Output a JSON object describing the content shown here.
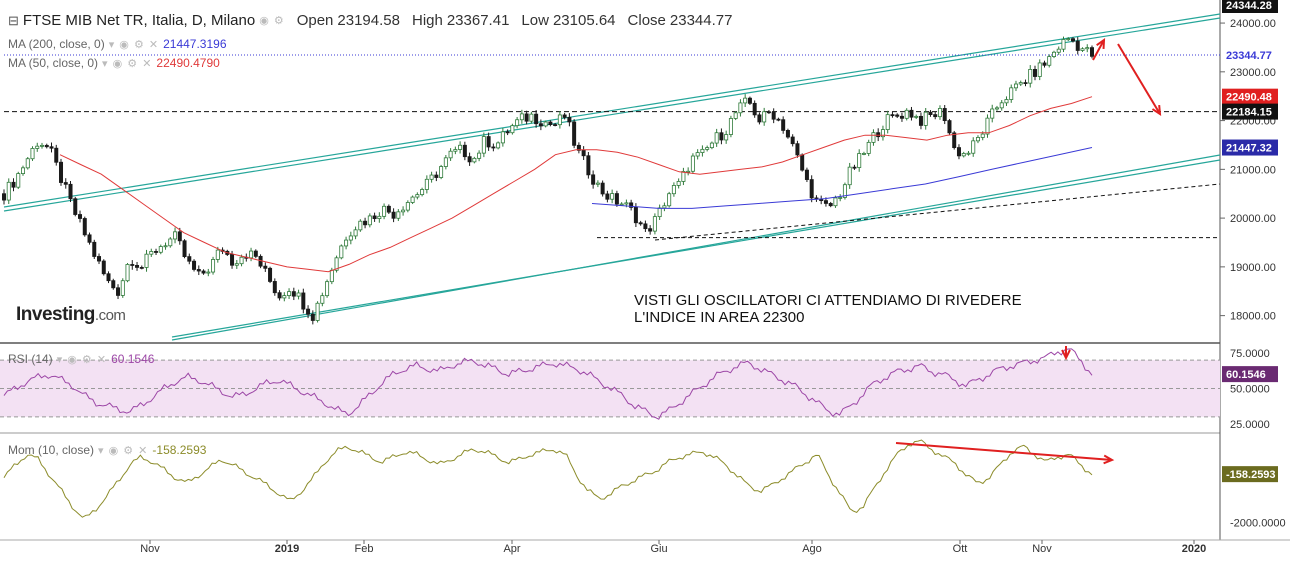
{
  "header": {
    "symbol_title": "FTSE MIB Net TR, Italia, D, Milano",
    "open_label": "Open",
    "open_value": "23194.58",
    "high_label": "High",
    "high_value": "23367.41",
    "low_label": "Low",
    "low_value": "23105.64",
    "close_label": "Close",
    "close_value": "23344.77"
  },
  "indicators": {
    "ma200": {
      "label": "MA (200, close, 0)",
      "value": "21447.3196",
      "color": "#3a3ad6"
    },
    "ma50": {
      "label": "MA (50, close, 0)",
      "value": "22490.4790",
      "color": "#e03a3a"
    },
    "rsi": {
      "label": "RSI (14)",
      "value": "60.1546",
      "color": "#9c46a6"
    },
    "mom": {
      "label": "Mom (10, close)",
      "value": "-158.2593",
      "color": "#8c8c2a"
    }
  },
  "logo": {
    "brand": "Investing",
    "suffix": ".com"
  },
  "annotation": {
    "line1": "VISTI GLI OSCILLATORI CI ATTENDIAMO DI RIVEDERE",
    "line2": "L'INDICE IN AREA 22300"
  },
  "price_badges": {
    "top_partial": "24344.28",
    "close": "23344.77",
    "ma50": "22490.48",
    "support": "22184.15",
    "ma200": "21447.32",
    "rsi": "60.1546",
    "mom": "-158.2593"
  },
  "colors": {
    "up_candle": "#2f7a3a",
    "down_candle": "#1a1a1a",
    "channel": "#26a69a",
    "arrow": "#e02020",
    "rsi_band": "#f3e1f3"
  },
  "chart_data": [
    {
      "type": "candlestick",
      "title": "FTSE MIB Net TR, Italia, D, Milano",
      "x_ticks": [
        "Nov",
        "2019",
        "Feb",
        "Apr",
        "Giu",
        "Ago",
        "Ott",
        "Nov",
        "2020"
      ],
      "y_ticks": [
        18000,
        19000,
        20000,
        21000,
        22000,
        23000,
        24000
      ],
      "ylim": [
        17500,
        24350
      ],
      "close_path": [
        20500,
        20800,
        21200,
        21600,
        21400,
        20800,
        20200,
        19700,
        19200,
        18700,
        18500,
        19200,
        19000,
        19300,
        19500,
        19600,
        19100,
        18800,
        19000,
        19400,
        19100,
        19300,
        19200,
        18800,
        18400,
        18600,
        18300,
        18000,
        18600,
        19200,
        19700,
        19900,
        20000,
        20200,
        20100,
        20300,
        20500,
        20700,
        21000,
        21300,
        21400,
        21200,
        21600,
        21500,
        21800,
        22000,
        22100,
        22000,
        21900,
        22100,
        21400,
        21000,
        20600,
        20400,
        20300,
        20100,
        19700,
        20000,
        20500,
        20700,
        21200,
        21300,
        21600,
        21800,
        22200,
        22400,
        22000,
        22200,
        21900,
        21400,
        20800,
        20300,
        20200,
        20500,
        21000,
        21300,
        21700,
        22000,
        22100,
        22200,
        22000,
        22100,
        22200,
        21400,
        21300,
        21600,
        22000,
        22400,
        22600,
        22800,
        23000,
        23200,
        23500,
        23700,
        23500,
        23345
      ],
      "ma50_path": [
        21300,
        21100,
        20900,
        20600,
        20300,
        20000,
        19700,
        19500,
        19300,
        19200,
        19100,
        19000,
        18950,
        18900,
        19050,
        19250,
        19400,
        19600,
        19800,
        20000,
        20250,
        20500,
        20750,
        21000,
        21300,
        21400,
        21400,
        21350,
        21250,
        21100,
        20950,
        20900,
        20950,
        21000,
        21050,
        21150,
        21300,
        21450,
        21600,
        21700,
        21700,
        21650,
        21600,
        21700,
        21750,
        21750,
        21900,
        22100,
        22250,
        22350,
        22490
      ],
      "ma200_path": [
        20300,
        20250,
        20200,
        20200,
        20250,
        20300,
        20350,
        20400,
        20500,
        20600,
        20700,
        20850,
        21000,
        21150,
        21300,
        21447
      ],
      "support_level": 22184.15,
      "lower_level": 19600,
      "series": [
        {
          "name": "MA (200, close, 0)",
          "last": 21447.3196
        },
        {
          "name": "MA (50, close, 0)",
          "last": 22490.479
        }
      ]
    },
    {
      "type": "line",
      "title": "RSI (14)",
      "y_ticks": [
        25,
        50,
        75
      ],
      "ylim": [
        20,
        80
      ],
      "band": [
        30,
        70
      ],
      "values": [
        45,
        50,
        55,
        58,
        60,
        56,
        52,
        45,
        40,
        38,
        35,
        34,
        38,
        44,
        50,
        55,
        58,
        56,
        52,
        48,
        44,
        46,
        50,
        54,
        56,
        52,
        48,
        44,
        40,
        35,
        32,
        38,
        46,
        54,
        60,
        64,
        66,
        64,
        62,
        66,
        68,
        70,
        66,
        64,
        60,
        62,
        64,
        66,
        68,
        66,
        64,
        60,
        55,
        50,
        45,
        38,
        34,
        30,
        34,
        40,
        46,
        52,
        58,
        62,
        66,
        68,
        64,
        60,
        56,
        52,
        46,
        40,
        34,
        32,
        38,
        46,
        54,
        58,
        62,
        64,
        66,
        62,
        60,
        56,
        52,
        56,
        60,
        64,
        66,
        68,
        70,
        72,
        76,
        78,
        70,
        60
      ]
    },
    {
      "type": "line",
      "title": "Mom (10, close)",
      "y_ticks": [
        -2000
      ],
      "ylim": [
        -2600,
        1300
      ],
      "values": [
        -300,
        200,
        600,
        400,
        -200,
        -800,
        -1400,
        -1900,
        -1500,
        -1000,
        -400,
        200,
        500,
        300,
        0,
        -300,
        -500,
        -200,
        100,
        400,
        200,
        -100,
        -300,
        -600,
        -900,
        -1200,
        -800,
        -300,
        300,
        700,
        900,
        700,
        500,
        300,
        500,
        700,
        600,
        400,
        200,
        400,
        600,
        800,
        700,
        500,
        300,
        400,
        600,
        700,
        800,
        600,
        -200,
        -800,
        -1100,
        -900,
        -600,
        -400,
        -200,
        0,
        300,
        500,
        600,
        700,
        500,
        200,
        -200,
        -600,
        -800,
        -600,
        -300,
        0,
        300,
        600,
        -200,
        -900,
        -1600,
        -1400,
        -700,
        0,
        600,
        1000,
        1100,
        800,
        500,
        300,
        -200,
        -500,
        -300,
        200,
        700,
        900,
        600,
        300,
        500,
        600,
        200,
        -158
      ]
    }
  ]
}
